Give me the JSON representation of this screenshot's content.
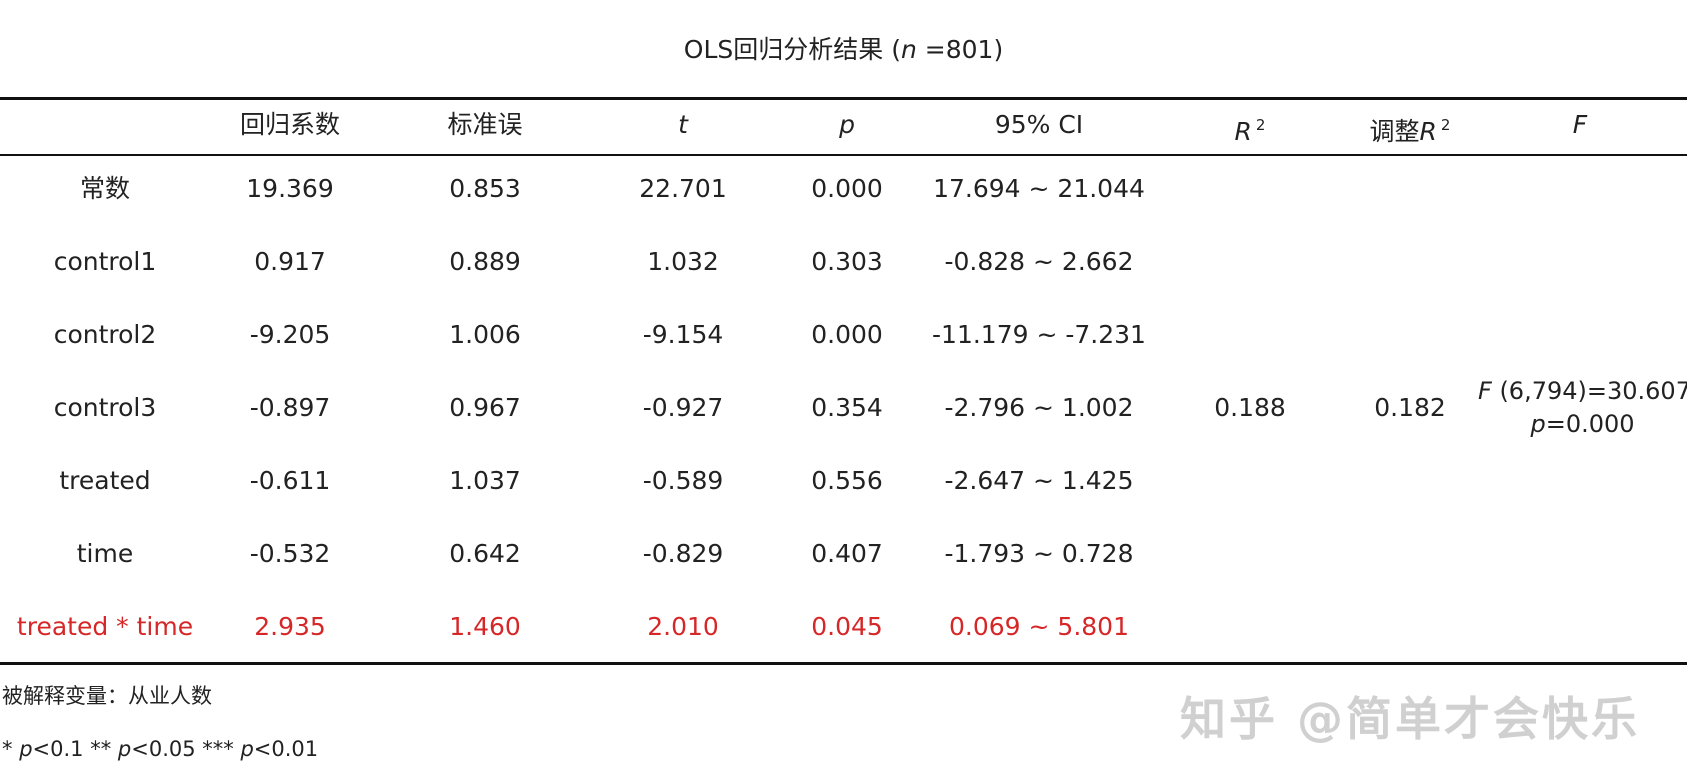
{
  "title": {
    "prefix": "OLS回归分析结果 (",
    "n_symbol": "n",
    "suffix": " =801)"
  },
  "header": {
    "coef": "回归系数",
    "se": "标准误",
    "t": "t",
    "p": "p",
    "ci": "95% CI",
    "r2_label": "R",
    "r2_sup": "2",
    "adj_r2_prefix": "调整",
    "adj_r2_label": "R",
    "adj_r2_sup": "2",
    "f": "F"
  },
  "rows": [
    {
      "name": "常数",
      "coef": "19.369",
      "se": "0.853",
      "t": "22.701",
      "p": "0.000",
      "ci": "17.694 ~ 21.044",
      "highlight": false
    },
    {
      "name": "control1",
      "coef": "0.917",
      "se": "0.889",
      "t": "1.032",
      "p": "0.303",
      "ci": "-0.828 ~ 2.662",
      "highlight": false
    },
    {
      "name": "control2",
      "coef": "-9.205",
      "se": "1.006",
      "t": "-9.154",
      "p": "0.000",
      "ci": "-11.179 ~ -7.231",
      "highlight": false
    },
    {
      "name": "control3",
      "coef": "-0.897",
      "se": "0.967",
      "t": "-0.927",
      "p": "0.354",
      "ci": "-2.796 ~ 1.002",
      "highlight": false
    },
    {
      "name": "treated",
      "coef": "-0.611",
      "se": "1.037",
      "t": "-0.589",
      "p": "0.556",
      "ci": "-2.647 ~ 1.425",
      "highlight": false
    },
    {
      "name": "time",
      "coef": "-0.532",
      "se": "0.642",
      "t": "-0.829",
      "p": "0.407",
      "ci": "-1.793 ~ 0.728",
      "highlight": false
    },
    {
      "name": "treated * time",
      "coef": "2.935",
      "se": "1.460",
      "t": "2.010",
      "p": "0.045",
      "ci": "0.069 ~ 5.801",
      "highlight": true
    }
  ],
  "model": {
    "r2": "0.188",
    "adj_r2": "0.182",
    "f_symbol": "F",
    "f_value": " (6,794)=30.607",
    "f_p_symbol": "p",
    "f_p_value": "=0.000"
  },
  "notes": {
    "dependent": "被解释变量：从业人数",
    "sig": [
      {
        "stars": "* ",
        "symbol": "p",
        "value": "<0.1 "
      },
      {
        "stars": "** ",
        "symbol": "p",
        "value": "<0.05 "
      },
      {
        "stars": "*** ",
        "symbol": "p",
        "value": "<0.01"
      }
    ]
  },
  "watermark": "知乎 @简单才会快乐",
  "colors": {
    "highlight": "#d62728",
    "rule": "#111111",
    "text": "#222222"
  }
}
